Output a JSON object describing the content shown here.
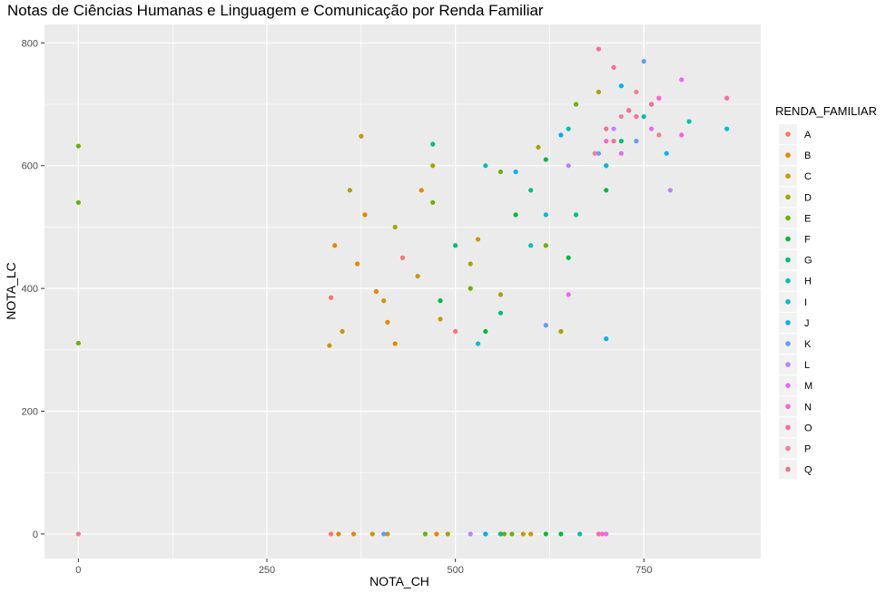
{
  "chart_data": {
    "type": "scatter",
    "title": "Notas de Ciências Humanas e Linguagem e Comunicação por Renda Familiar",
    "xlabel": "NOTA_CH",
    "ylabel": "NOTA_LC",
    "xlim": [
      -45,
      905
    ],
    "ylim": [
      -40,
      830
    ],
    "xticks": [
      0,
      250,
      500,
      750
    ],
    "yticks": [
      0,
      200,
      400,
      600,
      800
    ],
    "grid": true,
    "panel_background": "#ebebeb",
    "legend": {
      "title": "RENDA_FAMILIAR",
      "placement": "right",
      "entries": [
        "A",
        "B",
        "C",
        "D",
        "E",
        "F",
        "G",
        "H",
        "I",
        "J",
        "K",
        "L",
        "M",
        "N",
        "O",
        "P",
        "Q"
      ]
    },
    "colors": [
      "#F8766D",
      "#E58700",
      "#C99800",
      "#A3A500",
      "#6BB100",
      "#00BA38",
      "#00BF7D",
      "#00C0AF",
      "#00BCD8",
      "#00B0F6",
      "#619CFF",
      "#B983FF",
      "#E76BF3",
      "#FD61D1",
      "#FF67A4",
      "#F17E97",
      "#E7788F"
    ],
    "series": [
      {
        "name": "A",
        "points": [
          [
            335,
            385
          ],
          [
            0,
            0
          ],
          [
            335,
            0
          ],
          [
            500,
            330
          ],
          [
            430,
            450
          ]
        ]
      },
      {
        "name": "B",
        "points": [
          [
            340,
            470
          ],
          [
            370,
            440
          ],
          [
            395,
            395
          ],
          [
            410,
            345
          ],
          [
            380,
            520
          ],
          [
            455,
            560
          ],
          [
            420,
            310
          ],
          [
            345,
            0
          ],
          [
            365,
            0
          ],
          [
            475,
            0
          ]
        ]
      },
      {
        "name": "C",
        "points": [
          [
            333,
            307
          ],
          [
            375,
            648
          ],
          [
            350,
            330
          ],
          [
            405,
            380
          ],
          [
            450,
            420
          ],
          [
            480,
            350
          ],
          [
            530,
            480
          ],
          [
            390,
            0
          ],
          [
            410,
            0
          ],
          [
            590,
            0
          ],
          [
            600,
            0
          ]
        ]
      },
      {
        "name": "D",
        "points": [
          [
            360,
            560
          ],
          [
            420,
            500
          ],
          [
            470,
            600
          ],
          [
            520,
            440
          ],
          [
            560,
            390
          ],
          [
            610,
            630
          ],
          [
            640,
            330
          ],
          [
            690,
            720
          ],
          [
            490,
            0
          ],
          [
            560,
            0
          ]
        ]
      },
      {
        "name": "E",
        "points": [
          [
            0,
            632
          ],
          [
            0,
            540
          ],
          [
            0,
            311
          ],
          [
            470,
            540
          ],
          [
            520,
            400
          ],
          [
            560,
            590
          ],
          [
            620,
            470
          ],
          [
            660,
            700
          ],
          [
            460,
            0
          ],
          [
            565,
            0
          ],
          [
            575,
            0
          ]
        ]
      },
      {
        "name": "F",
        "points": [
          [
            480,
            380
          ],
          [
            540,
            330
          ],
          [
            580,
            520
          ],
          [
            620,
            610
          ],
          [
            650,
            450
          ],
          [
            700,
            560
          ],
          [
            620,
            0
          ],
          [
            640,
            0
          ]
        ]
      },
      {
        "name": "G",
        "points": [
          [
            470,
            635
          ],
          [
            500,
            470
          ],
          [
            560,
            360
          ],
          [
            600,
            560
          ],
          [
            660,
            520
          ],
          [
            720,
            640
          ],
          [
            560,
            0
          ]
        ]
      },
      {
        "name": "H",
        "points": [
          [
            540,
            600
          ],
          [
            600,
            470
          ],
          [
            650,
            660
          ],
          [
            700,
            600
          ],
          [
            750,
            680
          ],
          [
            810,
            672
          ],
          [
            665,
            0
          ]
        ]
      },
      {
        "name": "I",
        "points": [
          [
            530,
            310
          ],
          [
            620,
            520
          ],
          [
            700,
            600
          ],
          [
            760,
            700
          ],
          [
            860,
            660
          ],
          [
            540,
            0
          ]
        ]
      },
      {
        "name": "J",
        "points": [
          [
            540,
            0
          ],
          [
            580,
            590
          ],
          [
            640,
            650
          ],
          [
            700,
            318
          ],
          [
            720,
            730
          ],
          [
            780,
            620
          ]
        ]
      },
      {
        "name": "K",
        "points": [
          [
            405,
            0
          ],
          [
            620,
            340
          ],
          [
            690,
            620
          ],
          [
            750,
            770
          ],
          [
            740,
            640
          ]
        ]
      },
      {
        "name": "L",
        "points": [
          [
            520,
            0
          ],
          [
            650,
            600
          ],
          [
            710,
            660
          ],
          [
            760,
            700
          ],
          [
            785,
            560
          ]
        ]
      },
      {
        "name": "M",
        "points": [
          [
            650,
            390
          ],
          [
            700,
            0
          ],
          [
            720,
            620
          ],
          [
            760,
            660
          ],
          [
            800,
            740
          ]
        ]
      },
      {
        "name": "N",
        "points": [
          [
            695,
            0
          ],
          [
            700,
            640
          ],
          [
            730,
            690
          ],
          [
            770,
            710
          ],
          [
            800,
            650
          ]
        ]
      },
      {
        "name": "O",
        "points": [
          [
            690,
            0
          ],
          [
            690,
            790
          ],
          [
            710,
            760
          ],
          [
            740,
            680
          ],
          [
            860,
            710
          ]
        ]
      },
      {
        "name": "P",
        "points": [
          [
            0,
            0
          ],
          [
            685,
            620
          ],
          [
            740,
            720
          ],
          [
            770,
            650
          ],
          [
            720,
            680
          ]
        ]
      },
      {
        "name": "Q",
        "points": [
          [
            700,
            660
          ],
          [
            730,
            690
          ],
          [
            760,
            700
          ],
          [
            710,
            640
          ]
        ]
      }
    ]
  }
}
